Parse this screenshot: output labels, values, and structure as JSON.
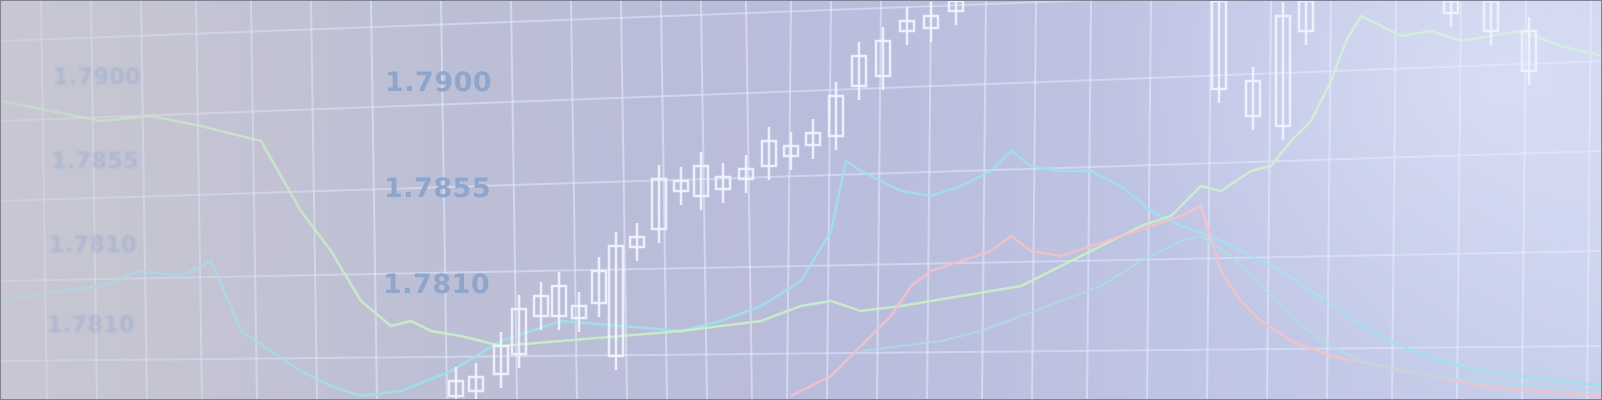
{
  "image": {
    "description_type": "stock-ticker-background",
    "price_labels": [
      {
        "text": "1.7900"
      },
      {
        "text": "1.7855"
      },
      {
        "text": "1.7810"
      },
      {
        "text": "1.7900"
      },
      {
        "text": "1.7855"
      },
      {
        "text": "1.7810"
      },
      {
        "text": "1.7810"
      }
    ],
    "colors": {
      "grid": "#e6ecff",
      "candles": "#f2f5ff",
      "line_cyan": "#9fe0f0",
      "line_green": "#c9f0c8",
      "line_pink": "#f4c0c8",
      "line_teal": "#a8e0e6",
      "label": "#8fa6cc"
    }
  }
}
